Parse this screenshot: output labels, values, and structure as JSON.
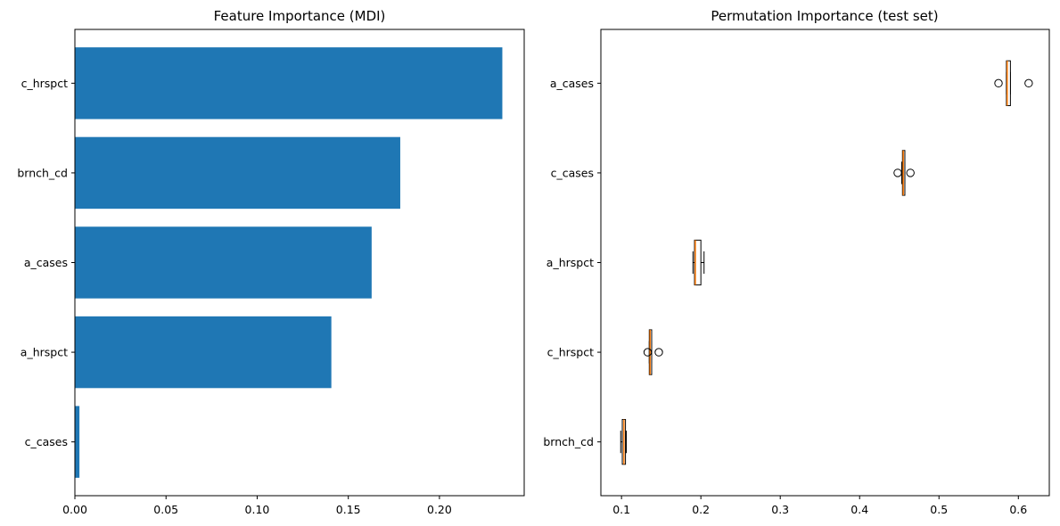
{
  "chart_data": [
    {
      "type": "bar",
      "orientation": "horizontal",
      "title": "Feature Importance (MDI)",
      "xlabel": "",
      "ylabel": "",
      "categories": [
        "c_cases",
        "a_hrspct",
        "a_cases",
        "brnch_cd",
        "c_hrspct"
      ],
      "values": [
        0.0025,
        0.1407,
        0.1628,
        0.1785,
        0.2345
      ],
      "xlim": [
        0,
        0.2465
      ],
      "xticks": [
        0.0,
        0.05,
        0.1,
        0.15,
        0.2
      ],
      "xtick_labels": [
        "0.00",
        "0.05",
        "0.10",
        "0.15",
        "0.20"
      ],
      "grid": false,
      "color": "#1f77b4"
    },
    {
      "type": "boxplot",
      "orientation": "horizontal",
      "title": "Permutation Importance (test set)",
      "xlabel": "",
      "ylabel": "",
      "categories": [
        "brnch_cd",
        "c_hrspct",
        "a_hrspct",
        "c_cases",
        "a_cases"
      ],
      "boxes": [
        {
          "q1": 0.101,
          "median": 0.103,
          "q3": 0.105,
          "whisker_low": 0.099,
          "whisker_high": 0.106,
          "outliers": []
        },
        {
          "q1": 0.135,
          "median": 0.136,
          "q3": 0.138,
          "whisker_low": 0.135,
          "whisker_high": 0.138,
          "outliers": [
            0.133,
            0.147
          ]
        },
        {
          "q1": 0.192,
          "median": 0.193,
          "q3": 0.2,
          "whisker_low": 0.19,
          "whisker_high": 0.204,
          "outliers": []
        },
        {
          "q1": 0.454,
          "median": 0.455,
          "q3": 0.457,
          "whisker_low": 0.453,
          "whisker_high": 0.457,
          "outliers": [
            0.448,
            0.464
          ]
        },
        {
          "q1": 0.585,
          "median": 0.586,
          "q3": 0.59,
          "whisker_low": 0.585,
          "whisker_high": 0.59,
          "outliers": [
            0.575,
            0.613
          ]
        }
      ],
      "xlim": [
        0.074,
        0.639
      ],
      "xticks": [
        0.1,
        0.2,
        0.3,
        0.4,
        0.5,
        0.6
      ],
      "xtick_labels": [
        "0.1",
        "0.2",
        "0.3",
        "0.4",
        "0.5",
        "0.6"
      ],
      "grid": false,
      "box_color": "#000000",
      "median_color": "#ff7f0e",
      "box_fill": "#ffffff"
    }
  ]
}
